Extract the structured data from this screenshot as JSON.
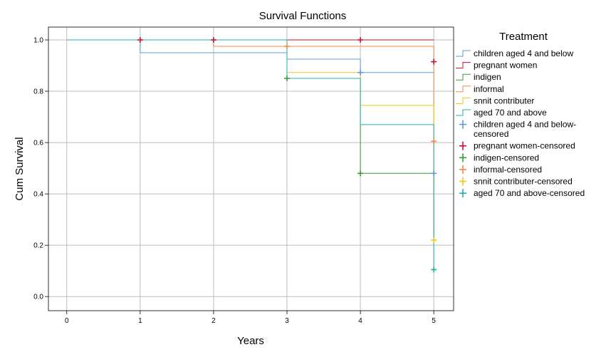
{
  "chart_data": {
    "type": "line",
    "title": "Survival Functions",
    "xlabel": "Years",
    "ylabel": "Cum Survival",
    "xlim": [
      -0.25,
      5.27
    ],
    "ylim": [
      -0.055,
      1.05
    ],
    "x_ticks": [
      "0",
      "1",
      "2",
      "3",
      "4",
      "5"
    ],
    "y_ticks": [
      "0.0",
      "0.2",
      "0.4",
      "0.6",
      "0.8",
      "1.0"
    ],
    "grid": true,
    "step": true,
    "legend": {
      "title": "Treatment",
      "position": "right",
      "entries": [
        {
          "label": "children aged 4 and below",
          "kind": "line",
          "color": "#5b9bd5"
        },
        {
          "label": "pregnant women",
          "kind": "line",
          "color": "#c8102e"
        },
        {
          "label": "indigen",
          "kind": "line",
          "color": "#3a9a3a"
        },
        {
          "label": "informal",
          "kind": "line",
          "color": "#f08a4b"
        },
        {
          "label": "snnit contributer",
          "kind": "line",
          "color": "#f2c811"
        },
        {
          "label": "aged 70 and above",
          "kind": "line",
          "color": "#20b2aa"
        },
        {
          "label": [
            "children aged 4 and below-",
            "censored"
          ],
          "kind": "censor",
          "color": "#5b9bd5"
        },
        {
          "label": "pregnant women-censored",
          "kind": "censor",
          "color": "#c8102e"
        },
        {
          "label": "indigen-censored",
          "kind": "censor",
          "color": "#3a9a3a"
        },
        {
          "label": "informal-censored",
          "kind": "censor",
          "color": "#f08a4b"
        },
        {
          "label": "snnit contributer-censored",
          "kind": "censor",
          "color": "#f2c811"
        },
        {
          "label": "aged 70 and above-censored",
          "kind": "censor",
          "color": "#20b2aa"
        }
      ]
    },
    "series": [
      {
        "name": "children aged 4 and below",
        "color": "#5b9bd5",
        "x": [
          0,
          1,
          3,
          4,
          5
        ],
        "y": [
          1.0,
          0.95,
          0.925,
          0.873,
          0.873
        ],
        "censored": [
          [
            4,
            0.873
          ],
          [
            5,
            0.48
          ]
        ]
      },
      {
        "name": "pregnant women",
        "color": "#c8102e",
        "x": [
          0,
          5
        ],
        "y": [
          1.0,
          1.0
        ],
        "censored": [
          [
            1,
            1.0
          ],
          [
            2,
            1.0
          ],
          [
            4,
            1.0
          ],
          [
            5,
            0.915
          ]
        ]
      },
      {
        "name": "indigen",
        "color": "#3a9a3a",
        "x": [
          0,
          2,
          3,
          4,
          5
        ],
        "y": [
          1.0,
          0.975,
          0.85,
          0.48,
          0.22
        ],
        "censored": [
          [
            3,
            0.85
          ],
          [
            4,
            0.48
          ]
        ]
      },
      {
        "name": "informal",
        "color": "#f08a4b",
        "x": [
          0,
          2,
          5
        ],
        "y": [
          1.0,
          0.975,
          0.6
        ],
        "censored": [
          [
            3,
            0.975
          ],
          [
            5,
            0.605
          ]
        ]
      },
      {
        "name": "snnit contributer",
        "color": "#f2c811",
        "x": [
          0,
          3,
          4,
          5
        ],
        "y": [
          1.0,
          0.873,
          0.745,
          0.22
        ],
        "censored": [
          [
            5,
            0.22
          ]
        ]
      },
      {
        "name": "aged 70 and above",
        "color": "#20b2aa",
        "x": [
          0,
          3,
          4,
          5
        ],
        "y": [
          1.0,
          0.85,
          0.67,
          0.105
        ],
        "censored": [
          [
            5,
            0.105
          ]
        ]
      }
    ]
  }
}
